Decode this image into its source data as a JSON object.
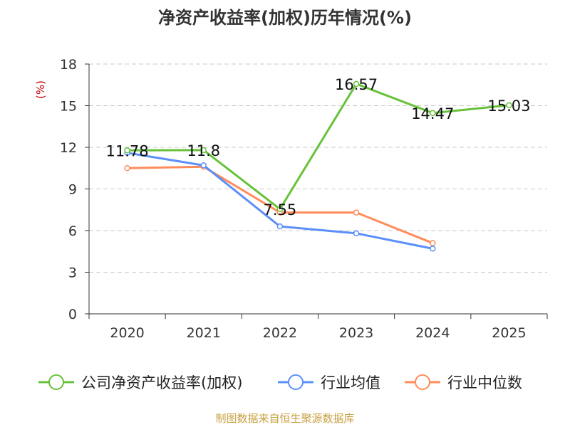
{
  "chart_data": {
    "type": "line",
    "title": "净资产收益率(加权)历年情况(%)",
    "ylabel": "(%)",
    "categories": [
      "2020",
      "2021",
      "2022",
      "2023",
      "2024",
      "2025"
    ],
    "yticks": [
      0,
      3,
      6,
      9,
      12,
      15,
      18
    ],
    "ylim": [
      0,
      18
    ],
    "grid": true,
    "legend_position": "bottom",
    "series": [
      {
        "name": "公司净资产收益率(加权)",
        "color": "#67c23a",
        "values": [
          11.78,
          11.8,
          7.55,
          16.57,
          14.47,
          15.03
        ],
        "labels": [
          "11.78",
          "11.8",
          "7.55",
          "16.57",
          "14.47",
          "15.03"
        ]
      },
      {
        "name": "行业均值",
        "color": "#5b8ff9",
        "values": [
          11.6,
          10.7,
          6.3,
          5.8,
          4.7,
          null
        ]
      },
      {
        "name": "行业中位数",
        "color": "#ff8c5a",
        "values": [
          10.5,
          10.6,
          7.3,
          7.3,
          5.1,
          null
        ]
      }
    ],
    "source": "制图数据来自恒生聚源数据库"
  }
}
